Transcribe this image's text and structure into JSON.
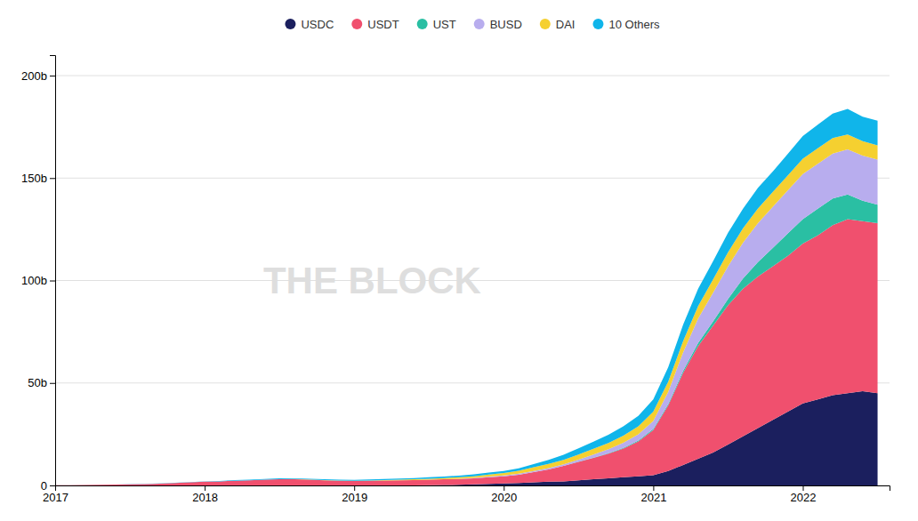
{
  "chart_data": {
    "type": "area",
    "stacked": true,
    "x": [
      2017.0,
      2017.1,
      2017.2,
      2017.3,
      2017.4,
      2017.5,
      2017.6,
      2017.7,
      2017.8,
      2017.9,
      2018.0,
      2018.1,
      2018.2,
      2018.3,
      2018.4,
      2018.5,
      2018.6,
      2018.7,
      2018.8,
      2018.9,
      2019.0,
      2019.1,
      2019.2,
      2019.3,
      2019.4,
      2019.5,
      2019.6,
      2019.7,
      2019.8,
      2019.9,
      2020.0,
      2020.1,
      2020.2,
      2020.3,
      2020.4,
      2020.5,
      2020.6,
      2020.7,
      2020.8,
      2020.9,
      2021.0,
      2021.1,
      2021.2,
      2021.3,
      2021.4,
      2021.5,
      2021.6,
      2021.7,
      2021.8,
      2021.9,
      2022.0,
      2022.1,
      2022.2,
      2022.3,
      2022.4,
      2022.5
    ],
    "series": [
      {
        "name": "USDC",
        "color": "#1b1f5e",
        "values": [
          0,
          0,
          0,
          0,
          0,
          0,
          0,
          0,
          0,
          0,
          0,
          0,
          0,
          0,
          0,
          0,
          0,
          0,
          0,
          0,
          0,
          0,
          0,
          0,
          0,
          0.1,
          0.2,
          0.3,
          0.5,
          0.8,
          1.0,
          1.2,
          1.5,
          1.8,
          2.0,
          2.5,
          3.0,
          3.5,
          4.0,
          4.5,
          5.0,
          7,
          10,
          13,
          16,
          20,
          24,
          28,
          32,
          36,
          40,
          42,
          44,
          45,
          46,
          45
        ]
      },
      {
        "name": "USDT",
        "color": "#f0506e",
        "values": [
          0.1,
          0.15,
          0.2,
          0.3,
          0.4,
          0.5,
          0.7,
          0.9,
          1.2,
          1.5,
          1.8,
          2.0,
          2.3,
          2.5,
          2.8,
          3.0,
          3.0,
          2.8,
          2.5,
          2.3,
          2.2,
          2.3,
          2.4,
          2.5,
          2.6,
          2.7,
          2.8,
          2.9,
          3.0,
          3.2,
          3.5,
          4.0,
          5.0,
          6.0,
          7.5,
          9.0,
          10.5,
          12.0,
          14.0,
          17.0,
          22.0,
          32.0,
          45.0,
          55.0,
          62.0,
          68.0,
          72.0,
          74.0,
          75.0,
          76.0,
          78.0,
          80.0,
          83.0,
          85.0,
          83.0,
          83.0
        ]
      },
      {
        "name": "UST",
        "color": "#2abfa3",
        "values": [
          0,
          0,
          0,
          0,
          0,
          0,
          0,
          0,
          0,
          0,
          0,
          0,
          0,
          0,
          0,
          0,
          0,
          0,
          0,
          0,
          0,
          0,
          0,
          0,
          0,
          0,
          0,
          0,
          0,
          0,
          0,
          0,
          0,
          0,
          0,
          0.1,
          0.1,
          0.2,
          0.3,
          0.4,
          0.5,
          0.7,
          1.0,
          1.5,
          2.0,
          3.0,
          5.0,
          7.0,
          9.0,
          11.0,
          12.0,
          13.0,
          13.0,
          12.0,
          10.0,
          9.0
        ]
      },
      {
        "name": "BUSD",
        "color": "#b8adee",
        "values": [
          0,
          0,
          0,
          0,
          0,
          0,
          0,
          0,
          0,
          0,
          0,
          0,
          0,
          0,
          0,
          0,
          0,
          0,
          0,
          0,
          0,
          0,
          0,
          0,
          0,
          0,
          0,
          0.1,
          0.2,
          0.3,
          0.4,
          0.5,
          0.6,
          0.7,
          0.8,
          1.0,
          1.5,
          2.0,
          2.5,
          3.0,
          4.0,
          6.0,
          9.0,
          12.0,
          14.0,
          16.0,
          17.5,
          19.0,
          20.0,
          21.0,
          22.0,
          22.0,
          22.0,
          22.0,
          22.0,
          22.0
        ]
      },
      {
        "name": "DAI",
        "color": "#f5d030",
        "values": [
          0,
          0,
          0,
          0,
          0,
          0,
          0,
          0,
          0,
          0,
          0,
          0,
          0,
          0,
          0,
          0.05,
          0.1,
          0.1,
          0.1,
          0.1,
          0.1,
          0.1,
          0.2,
          0.3,
          0.4,
          0.5,
          0.6,
          0.7,
          0.8,
          1.0,
          1.2,
          1.5,
          1.8,
          2.0,
          2.2,
          2.5,
          2.8,
          3.0,
          3.5,
          4.0,
          4.5,
          5.0,
          5.5,
          6.0,
          6.5,
          6.8,
          7.0,
          7.2,
          7.3,
          7.3,
          7.5,
          7.5,
          7.5,
          7.3,
          7.0,
          7.0
        ]
      },
      {
        "name": "10 Others",
        "color": "#10b5ea",
        "values": [
          0,
          0,
          0,
          0,
          0.05,
          0.1,
          0.1,
          0.1,
          0.1,
          0.15,
          0.2,
          0.2,
          0.3,
          0.3,
          0.3,
          0.4,
          0.4,
          0.4,
          0.4,
          0.4,
          0.4,
          0.5,
          0.5,
          0.6,
          0.6,
          0.7,
          0.7,
          0.8,
          0.9,
          1.0,
          1.0,
          1.2,
          1.5,
          2.0,
          2.5,
          3.0,
          3.5,
          4.0,
          4.5,
          5.0,
          6.0,
          7.0,
          8.0,
          8.5,
          9.0,
          9.5,
          9.5,
          10.0,
          10.0,
          10.5,
          11.0,
          11.5,
          12.0,
          12.5,
          12.0,
          12.0
        ]
      }
    ],
    "xlim": [
      2017.0,
      2022.58
    ],
    "xticks": [
      2017,
      2018,
      2019,
      2020,
      2021,
      2022
    ],
    "ylim": [
      0,
      210
    ],
    "yticks": [
      0,
      {
        "value": 50,
        "label": "50b"
      },
      {
        "value": 100,
        "label": "100b"
      },
      {
        "value": 150,
        "label": "150b"
      },
      {
        "value": 200,
        "label": "200b"
      }
    ],
    "grid": "y",
    "legend": "top",
    "annotations": [
      {
        "text": "THE BLOCK"
      }
    ]
  }
}
